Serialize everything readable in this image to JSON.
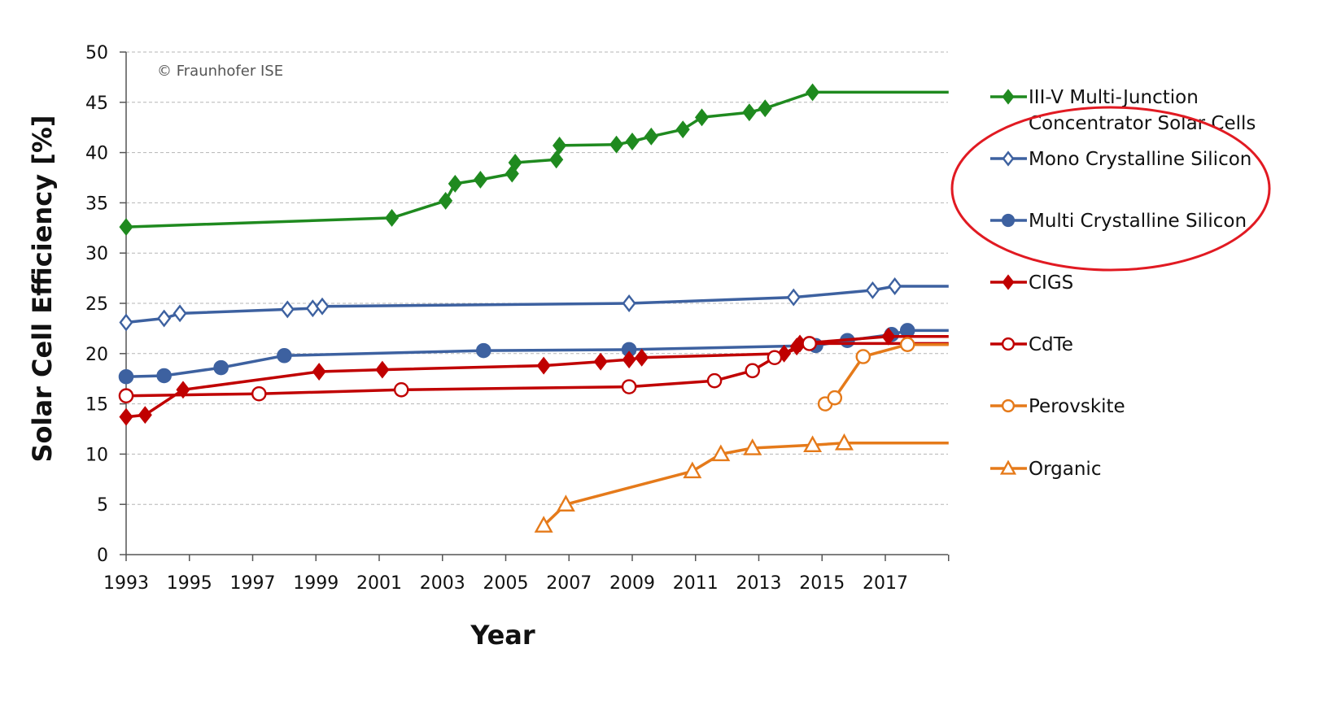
{
  "chart_data": {
    "type": "line",
    "annotation": "© Fraunhofer ISE",
    "xlabel": "Year",
    "ylabel": "Solar Cell Efficiency [%]",
    "xlim": [
      1993,
      2019
    ],
    "ylim": [
      0,
      50
    ],
    "xticks": [
      "1993",
      "1995",
      "1997",
      "1999",
      "2001",
      "2003",
      "2005",
      "2007",
      "2009",
      "2011",
      "2013",
      "2015",
      "2017"
    ],
    "yticks": [
      "0",
      "5",
      "10",
      "15",
      "20",
      "25",
      "30",
      "35",
      "40",
      "45",
      "50"
    ],
    "grid": "horizontal-dashed",
    "legend_position": "right",
    "highlight_ellipse_around": [
      "Mono Crystalline Silicon",
      "Multi Crystalline Silicon"
    ],
    "highlight_color": "#e11a22",
    "series": [
      {
        "name_lines": [
          "III-V Multi-Junction",
          "Concentrator Solar Cells"
        ],
        "color": "#1f8a1f",
        "marker": "diamond",
        "filled": true,
        "points": [
          [
            1993,
            32.6
          ],
          [
            2001.4,
            33.5
          ],
          [
            2003.1,
            35.2
          ],
          [
            2003.4,
            36.9
          ],
          [
            2004.2,
            37.3
          ],
          [
            2005.2,
            37.9
          ],
          [
            2005.3,
            39.0
          ],
          [
            2006.6,
            39.3
          ],
          [
            2006.7,
            40.7
          ],
          [
            2008.5,
            40.8
          ],
          [
            2009.0,
            41.1
          ],
          [
            2009.6,
            41.6
          ],
          [
            2010.6,
            42.3
          ],
          [
            2011.2,
            43.5
          ],
          [
            2012.7,
            44.0
          ],
          [
            2013.2,
            44.4
          ],
          [
            2014.7,
            46.0
          ],
          [
            2019,
            46.0
          ]
        ]
      },
      {
        "name_lines": [
          "Mono Crystalline Silicon"
        ],
        "color": "#3d61a0",
        "marker": "diamond",
        "filled": false,
        "points": [
          [
            1993,
            23.1
          ],
          [
            1994.2,
            23.5
          ],
          [
            1994.7,
            24.0
          ],
          [
            1998.1,
            24.4
          ],
          [
            1998.9,
            24.5
          ],
          [
            1999.2,
            24.7
          ],
          [
            2008.9,
            25.0
          ],
          [
            2014.1,
            25.6
          ],
          [
            2016.6,
            26.3
          ],
          [
            2017.3,
            26.7
          ],
          [
            2019,
            26.7
          ]
        ]
      },
      {
        "name_lines": [
          "Multi Crystalline Silicon"
        ],
        "color": "#3d61a0",
        "marker": "circle",
        "filled": true,
        "points": [
          [
            1993,
            17.7
          ],
          [
            1994.2,
            17.8
          ],
          [
            1996.0,
            18.6
          ],
          [
            1998.0,
            19.8
          ],
          [
            2004.3,
            20.3
          ],
          [
            2008.9,
            20.4
          ],
          [
            2014.8,
            20.8
          ],
          [
            2015.8,
            21.3
          ],
          [
            2017.2,
            21.9
          ],
          [
            2017.7,
            22.3
          ],
          [
            2019,
            22.3
          ]
        ]
      },
      {
        "name_lines": [
          "CIGS"
        ],
        "color": "#c00000",
        "marker": "diamond",
        "filled": true,
        "points": [
          [
            1993,
            13.7
          ],
          [
            1993.6,
            13.9
          ],
          [
            1994.8,
            16.4
          ],
          [
            1999.1,
            18.2
          ],
          [
            2001.1,
            18.4
          ],
          [
            2006.2,
            18.8
          ],
          [
            2008.0,
            19.2
          ],
          [
            2008.9,
            19.4
          ],
          [
            2009.3,
            19.6
          ],
          [
            2013.8,
            20.0
          ],
          [
            2014.2,
            20.7
          ],
          [
            2014.3,
            21.0
          ],
          [
            2017.1,
            21.7
          ],
          [
            2019,
            21.7
          ]
        ]
      },
      {
        "name_lines": [
          "CdTe"
        ],
        "color": "#c00000",
        "marker": "circle",
        "filled": false,
        "points": [
          [
            1993,
            15.8
          ],
          [
            1997.2,
            16.0
          ],
          [
            2001.7,
            16.4
          ],
          [
            2008.9,
            16.7
          ],
          [
            2011.6,
            17.3
          ],
          [
            2012.8,
            18.3
          ],
          [
            2013.5,
            19.6
          ],
          [
            2014.6,
            21.0
          ],
          [
            2019,
            21.0
          ]
        ]
      },
      {
        "name_lines": [
          "Perovskite"
        ],
        "color": "#e57a1a",
        "marker": "circle",
        "filled": false,
        "points": [
          [
            2015.1,
            15.0
          ],
          [
            2015.4,
            15.6
          ],
          [
            2016.3,
            19.7
          ],
          [
            2017.7,
            20.9
          ],
          [
            2019,
            20.9
          ]
        ]
      },
      {
        "name_lines": [
          "Organic"
        ],
        "color": "#e57a1a",
        "marker": "triangle",
        "filled": false,
        "points": [
          [
            2006.2,
            2.9
          ],
          [
            2006.9,
            5.0
          ],
          [
            2010.9,
            8.3
          ],
          [
            2011.8,
            10.0
          ],
          [
            2012.8,
            10.6
          ],
          [
            2014.7,
            10.9
          ],
          [
            2015.7,
            11.1
          ],
          [
            2019,
            11.1
          ]
        ]
      }
    ]
  }
}
